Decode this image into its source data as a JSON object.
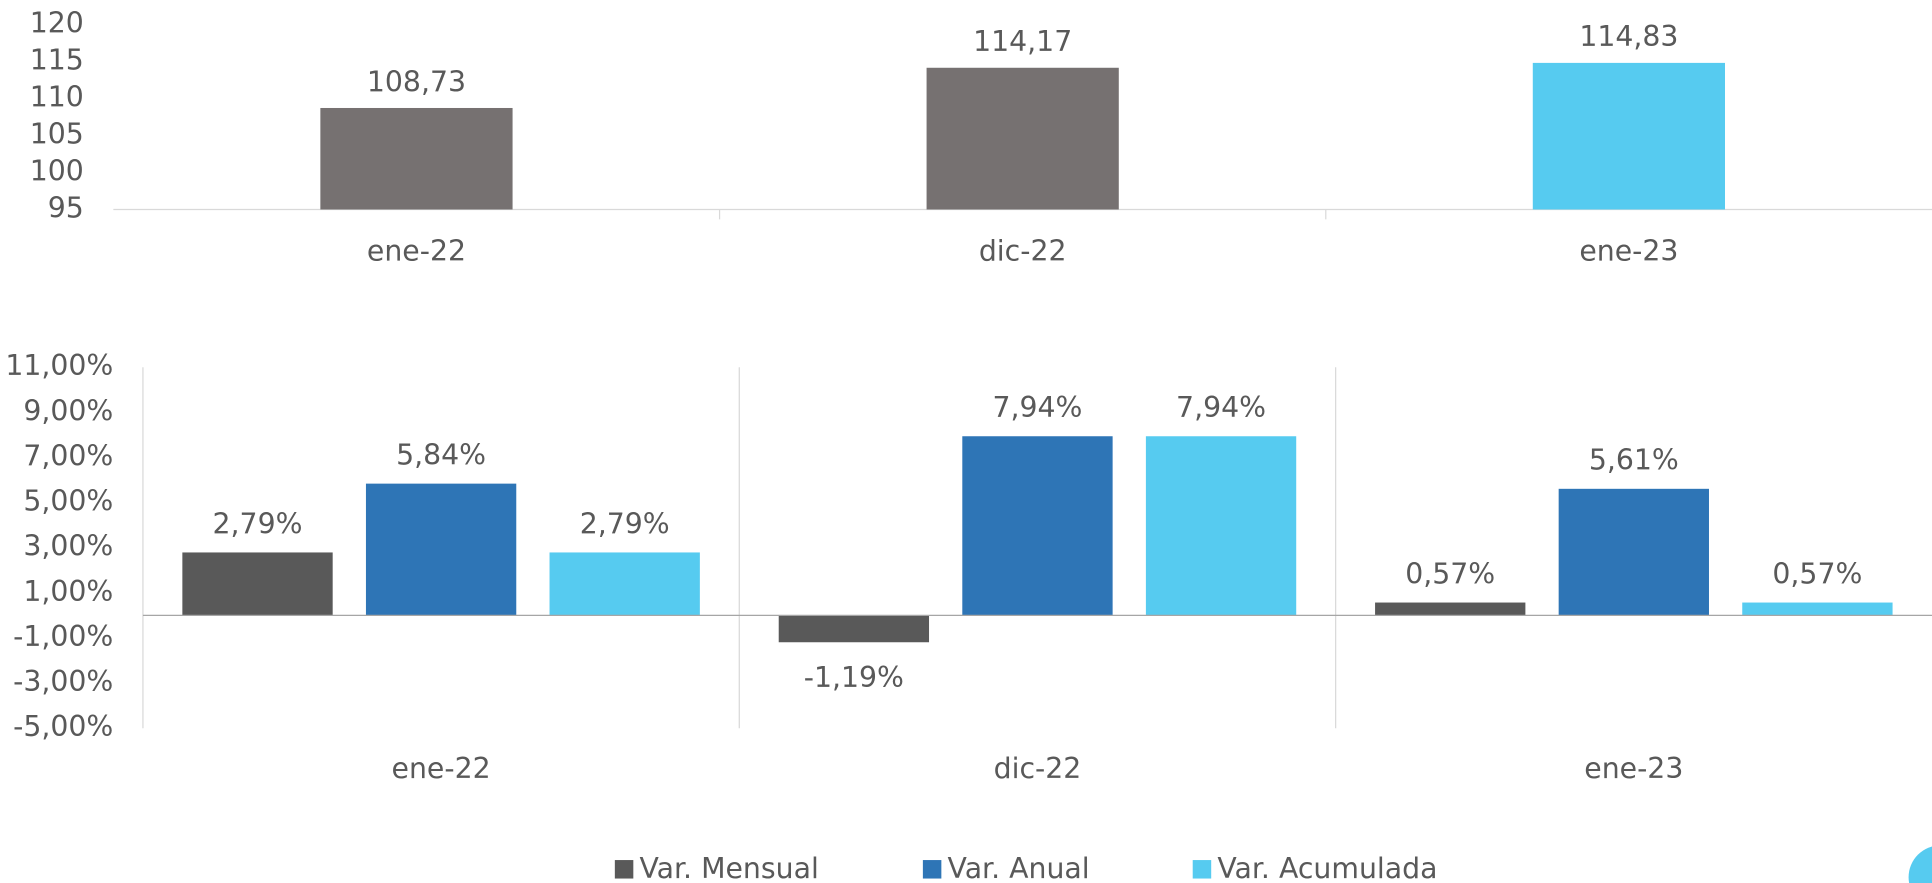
{
  "chart_data": [
    {
      "type": "bar",
      "categories": [
        "ene-22",
        "dic-22",
        "ene-23"
      ],
      "values": [
        108.73,
        114.17,
        114.83
      ],
      "value_labels": [
        "108,73",
        "114,17",
        "114,83"
      ],
      "colors": [
        "#767171",
        "#767171",
        "#56cbf0"
      ],
      "ylim": [
        95,
        120
      ],
      "yticks": [
        95,
        100,
        105,
        110,
        115,
        120
      ]
    },
    {
      "type": "grouped_bar",
      "categories": [
        "ene-22",
        "dic-22",
        "ene-23"
      ],
      "series": [
        {
          "name": "Var. Mensual",
          "color": "#595959",
          "values": [
            2.79,
            -1.19,
            0.57
          ],
          "value_labels": [
            "2,79%",
            "-1,19%",
            "0,57%"
          ]
        },
        {
          "name": "Var. Anual",
          "color": "#2e75b6",
          "values": [
            5.84,
            7.94,
            5.61
          ],
          "value_labels": [
            "5,84%",
            "7,94%",
            "5,61%"
          ]
        },
        {
          "name": "Var. Acumulada",
          "color": "#56cbf0",
          "values": [
            2.79,
            7.94,
            0.57
          ],
          "value_labels": [
            "2,79%",
            "7,94%",
            "0,57%"
          ]
        }
      ],
      "ylim": [
        -5,
        11
      ],
      "yticks": [
        {
          "value": -5,
          "label": "-5,00%"
        },
        {
          "value": -3,
          "label": "-3,00%"
        },
        {
          "value": -1,
          "label": "-1,00%"
        },
        {
          "value": 1,
          "label": "1,00%"
        },
        {
          "value": 3,
          "label": "3,00%"
        },
        {
          "value": 5,
          "label": "5,00%"
        },
        {
          "value": 7,
          "label": "7,00%"
        },
        {
          "value": 9,
          "label": "9,00%"
        },
        {
          "value": 11,
          "label": "11,00%"
        }
      ],
      "legend": "bottom"
    }
  ]
}
